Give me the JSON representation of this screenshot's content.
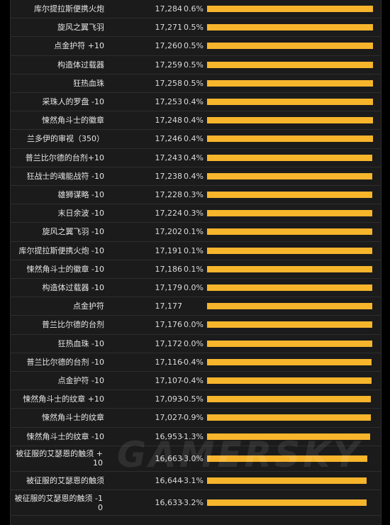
{
  "chart_data": {
    "type": "bar",
    "orientation": "horizontal",
    "columns": [
      "name",
      "value",
      "percent"
    ],
    "rows": [
      {
        "name": "库尔提拉斯便携火炮",
        "value": 17284,
        "value_label": "17,284",
        "percent": "0.6%"
      },
      {
        "name": "旋风之翼飞羽",
        "value": 17271,
        "value_label": "17,271",
        "percent": "0.5%"
      },
      {
        "name": "点金护符 +10",
        "value": 17260,
        "value_label": "17,260",
        "percent": "0.5%"
      },
      {
        "name": "构造体过载器",
        "value": 17259,
        "value_label": "17,259",
        "percent": "0.5%"
      },
      {
        "name": "狂热血珠",
        "value": 17258,
        "value_label": "17,258",
        "percent": "0.5%"
      },
      {
        "name": "采珠人的罗盘 -10",
        "value": 17253,
        "value_label": "17,253",
        "percent": "0.4%"
      },
      {
        "name": "悚然角斗士的徽章",
        "value": 17248,
        "value_label": "17,248",
        "percent": "0.4%"
      },
      {
        "name": "兰多伊的审视（350）",
        "value": 17246,
        "value_label": "17,246",
        "percent": "0.4%"
      },
      {
        "name": "普兰比尔德的台剂+10",
        "value": 17243,
        "value_label": "17,243",
        "percent": "0.4%"
      },
      {
        "name": "狂战士的魂能战符 -10",
        "value": 17238,
        "value_label": "17,238",
        "percent": "0.4%"
      },
      {
        "name": "雄狮谋略 -10",
        "value": 17228,
        "value_label": "17,228",
        "percent": "0.3%"
      },
      {
        "name": "末日余波 -10",
        "value": 17224,
        "value_label": "17,224",
        "percent": "0.3%"
      },
      {
        "name": "旋风之翼飞羽 -10",
        "value": 17202,
        "value_label": "17,202",
        "percent": "0.1%"
      },
      {
        "name": "库尔提拉斯便携火炮 -10",
        "value": 17191,
        "value_label": "17,191",
        "percent": "0.1%"
      },
      {
        "name": "悚然角斗士的徽章 -10",
        "value": 17186,
        "value_label": "17,186",
        "percent": "0.1%"
      },
      {
        "name": "构造体过载器 -10",
        "value": 17179,
        "value_label": "17,179",
        "percent": "0.0%"
      },
      {
        "name": "点金护符",
        "value": 17177,
        "value_label": "17,177",
        "percent": ""
      },
      {
        "name": "普兰比尔德的台剂",
        "value": 17176,
        "value_label": "17,176",
        "percent": "0.0%"
      },
      {
        "name": "狂热血珠 -10",
        "value": 17172,
        "value_label": "17,172",
        "percent": "0.0%"
      },
      {
        "name": "普兰比尔德的台剂 -10",
        "value": 17116,
        "value_label": "17,116",
        "percent": "-0.4%"
      },
      {
        "name": "点金护符 -10",
        "value": 17107,
        "value_label": "17,107",
        "percent": "-0.4%"
      },
      {
        "name": "悚然角斗士的纹章 +10",
        "value": 17093,
        "value_label": "17,093",
        "percent": "-0.5%"
      },
      {
        "name": "悚然角斗士的纹章",
        "value": 17027,
        "value_label": "17,027",
        "percent": "-0.9%"
      },
      {
        "name": "悚然角斗士的纹章 -10",
        "value": 16953,
        "value_label": "16,953",
        "percent": "-1.3%"
      },
      {
        "name": "被征服的艾瑟恩的触须 +10",
        "value": 16663,
        "value_label": "16,663",
        "percent": "-3.0%"
      },
      {
        "name": "被征服的艾瑟恩的触须",
        "value": 16644,
        "value_label": "16,644",
        "percent": "-3.1%"
      },
      {
        "name": "被征服的艾瑟恩的触须 -10",
        "value": 16633,
        "value_label": "16,633",
        "percent": "-3.2%"
      }
    ],
    "xlim": [
      0,
      17284
    ],
    "grid": false,
    "legend": "none",
    "bar_color": "#f7b52c"
  },
  "watermark": "GAMERSKY",
  "colors": {
    "background": "#1b1b1b",
    "outer": "#000000",
    "text": "#e6e6e6",
    "bar": "#f7b52c"
  }
}
